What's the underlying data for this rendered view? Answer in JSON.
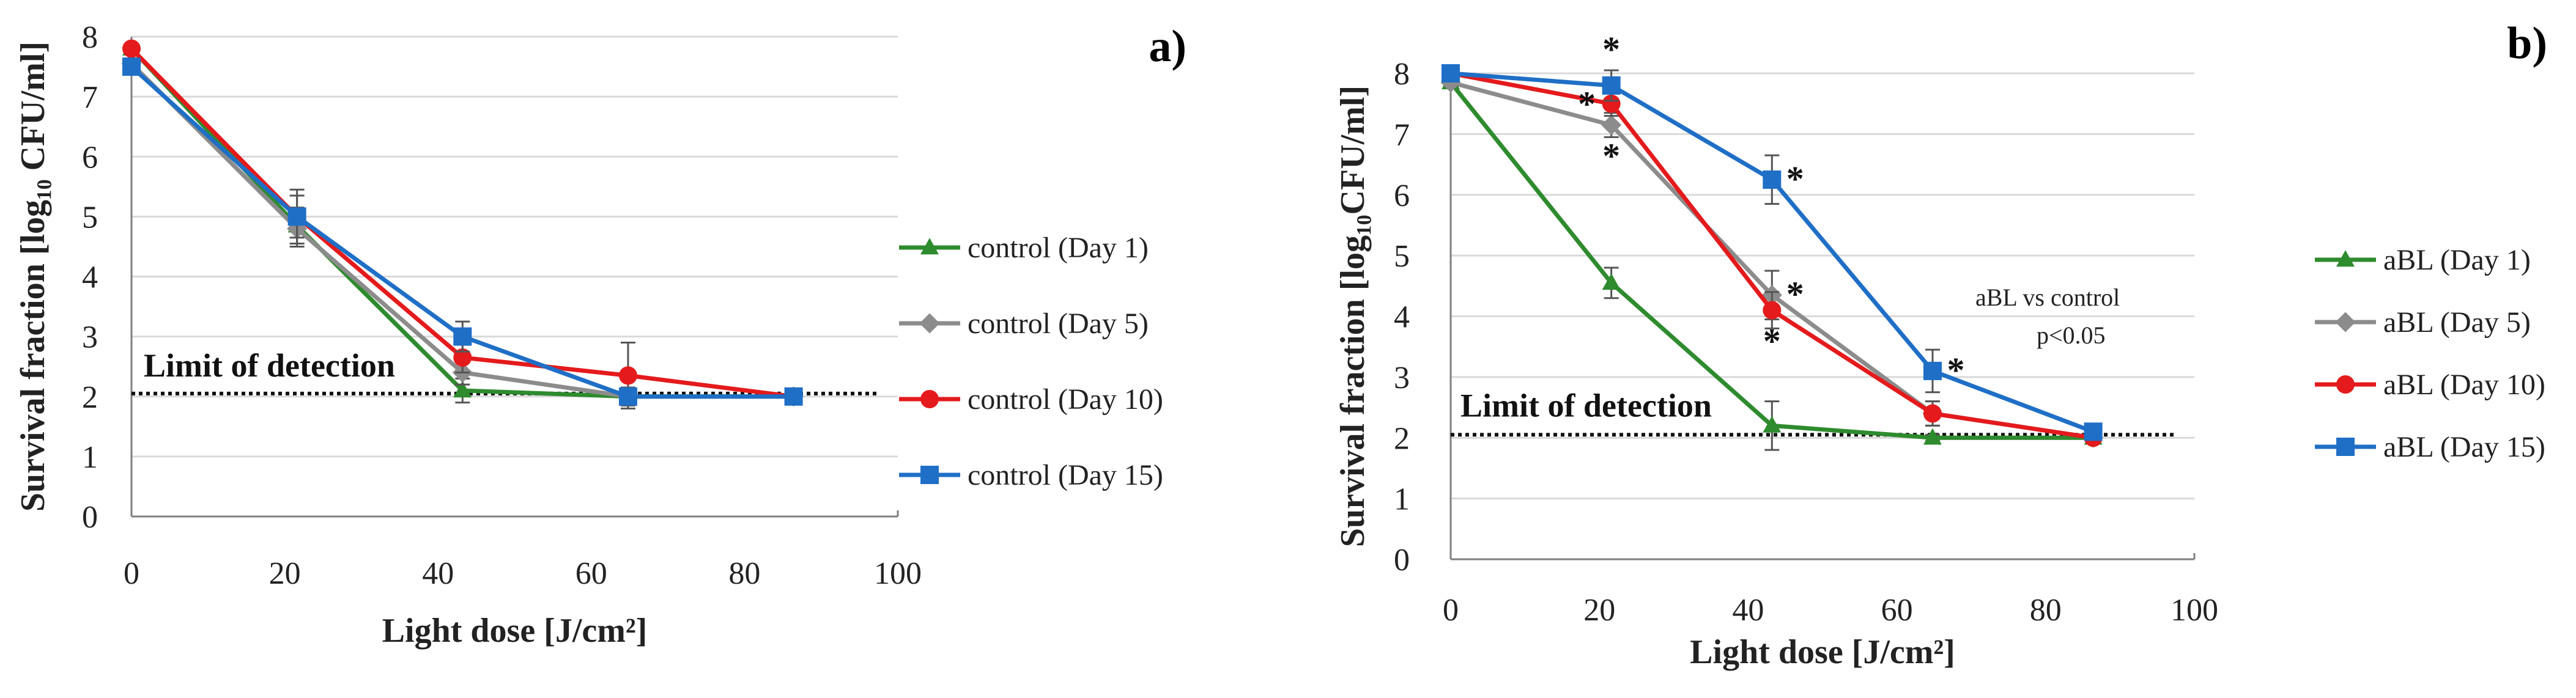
{
  "colors": {
    "day1": "#2e8b2e",
    "day5": "#8c8c8c",
    "day10": "#e41a1c",
    "day15": "#1f6fc6",
    "grid": "#d9d9d9",
    "axis": "#7f7f7f"
  },
  "chart_data": [
    {
      "id": "a",
      "type": "line",
      "panel_label": "a)",
      "xlabel": "Light dose [J/cm²]",
      "ylabel": "Survival fraction [log₁₀ CFU/ml]",
      "xlim": [
        0,
        100
      ],
      "ylim": [
        0,
        8
      ],
      "xticks": [
        "0",
        "20",
        "40",
        "60",
        "80",
        "100"
      ],
      "yticks": [
        "0",
        "1",
        "2",
        "3",
        "4",
        "5",
        "6",
        "7",
        "8"
      ],
      "grid": "horizontal",
      "legend_position": "right",
      "detection_limit": 2.05,
      "detection_label": "Limit of detection",
      "x": [
        0,
        21.6,
        43.2,
        64.8,
        86.4
      ],
      "series": [
        {
          "name": "control (Day 1)",
          "color_key": "day1",
          "marker": "triangle",
          "values": [
            7.8,
            4.85,
            2.1,
            2.0,
            2.0
          ],
          "errors": [
            0.05,
            0.3,
            0.2,
            0.1,
            0.05
          ]
        },
        {
          "name": "control (Day 5)",
          "color_key": "day5",
          "marker": "diamond",
          "values": [
            7.55,
            4.8,
            2.4,
            2.0,
            2.0
          ],
          "errors": [
            0.05,
            0.3,
            0.2,
            0.1,
            0.05
          ]
        },
        {
          "name": "control (Day 10)",
          "color_key": "day10",
          "marker": "circle",
          "values": [
            7.8,
            5.0,
            2.65,
            2.35,
            2.0
          ],
          "errors": [
            0.05,
            0.45,
            0.25,
            0.55,
            0.05
          ]
        },
        {
          "name": "control (Day 15)",
          "color_key": "day15",
          "marker": "square",
          "values": [
            7.5,
            5.0,
            3.0,
            2.0,
            2.0
          ],
          "errors": [
            0.05,
            0.35,
            0.25,
            0.15,
            0.05
          ]
        }
      ]
    },
    {
      "id": "b",
      "type": "line",
      "panel_label": "b)",
      "xlabel": "Light dose [J/cm²]",
      "ylabel": "Survival fraction [log₁₀CFU/ml]",
      "xlim": [
        0,
        100
      ],
      "ylim": [
        0,
        8
      ],
      "xticks": [
        "0",
        "20",
        "40",
        "60",
        "80",
        "100"
      ],
      "yticks": [
        "0",
        "1",
        "2",
        "3",
        "4",
        "5",
        "6",
        "7",
        "8"
      ],
      "grid": "horizontal",
      "legend_position": "right",
      "detection_limit": 2.05,
      "detection_label": "Limit of detection",
      "annotation": [
        "aBL vs control",
        "p<0.05"
      ],
      "x": [
        0,
        21.6,
        43.2,
        64.8,
        86.4
      ],
      "series": [
        {
          "name": "aBL (Day 1)",
          "color_key": "day1",
          "marker": "triangle",
          "values": [
            7.85,
            4.55,
            2.2,
            2.0,
            2.0
          ],
          "errors": [
            0.05,
            0.25,
            0.4,
            0.05,
            0.05
          ]
        },
        {
          "name": "aBL (Day 5)",
          "color_key": "day5",
          "marker": "diamond",
          "values": [
            7.85,
            7.15,
            4.35,
            2.4,
            2.0
          ],
          "errors": [
            0.05,
            0.2,
            0.4,
            0.2,
            0.05
          ]
        },
        {
          "name": "aBL (Day 10)",
          "color_key": "day10",
          "marker": "circle",
          "values": [
            8.0,
            7.5,
            4.1,
            2.4,
            2.0
          ],
          "errors": [
            0.05,
            0.2,
            0.3,
            0.2,
            0.05
          ]
        },
        {
          "name": "aBL (Day 15)",
          "color_key": "day15",
          "marker": "square",
          "values": [
            8.0,
            7.8,
            6.25,
            3.1,
            2.1
          ],
          "errors": [
            0.05,
            0.25,
            0.4,
            0.35,
            0.1
          ]
        }
      ],
      "significance": [
        {
          "series": 3,
          "point": 1,
          "text": "*",
          "pos": "above"
        },
        {
          "series": 2,
          "point": 1,
          "text": "*",
          "pos": "left"
        },
        {
          "series": 1,
          "point": 1,
          "text": "*",
          "pos": "below"
        },
        {
          "series": 3,
          "point": 2,
          "text": "*",
          "pos": "right"
        },
        {
          "series": 1,
          "point": 2,
          "text": "*",
          "pos": "right"
        },
        {
          "series": 2,
          "point": 2,
          "text": "*",
          "pos": "below"
        },
        {
          "series": 3,
          "point": 3,
          "text": "*",
          "pos": "right"
        }
      ]
    }
  ]
}
